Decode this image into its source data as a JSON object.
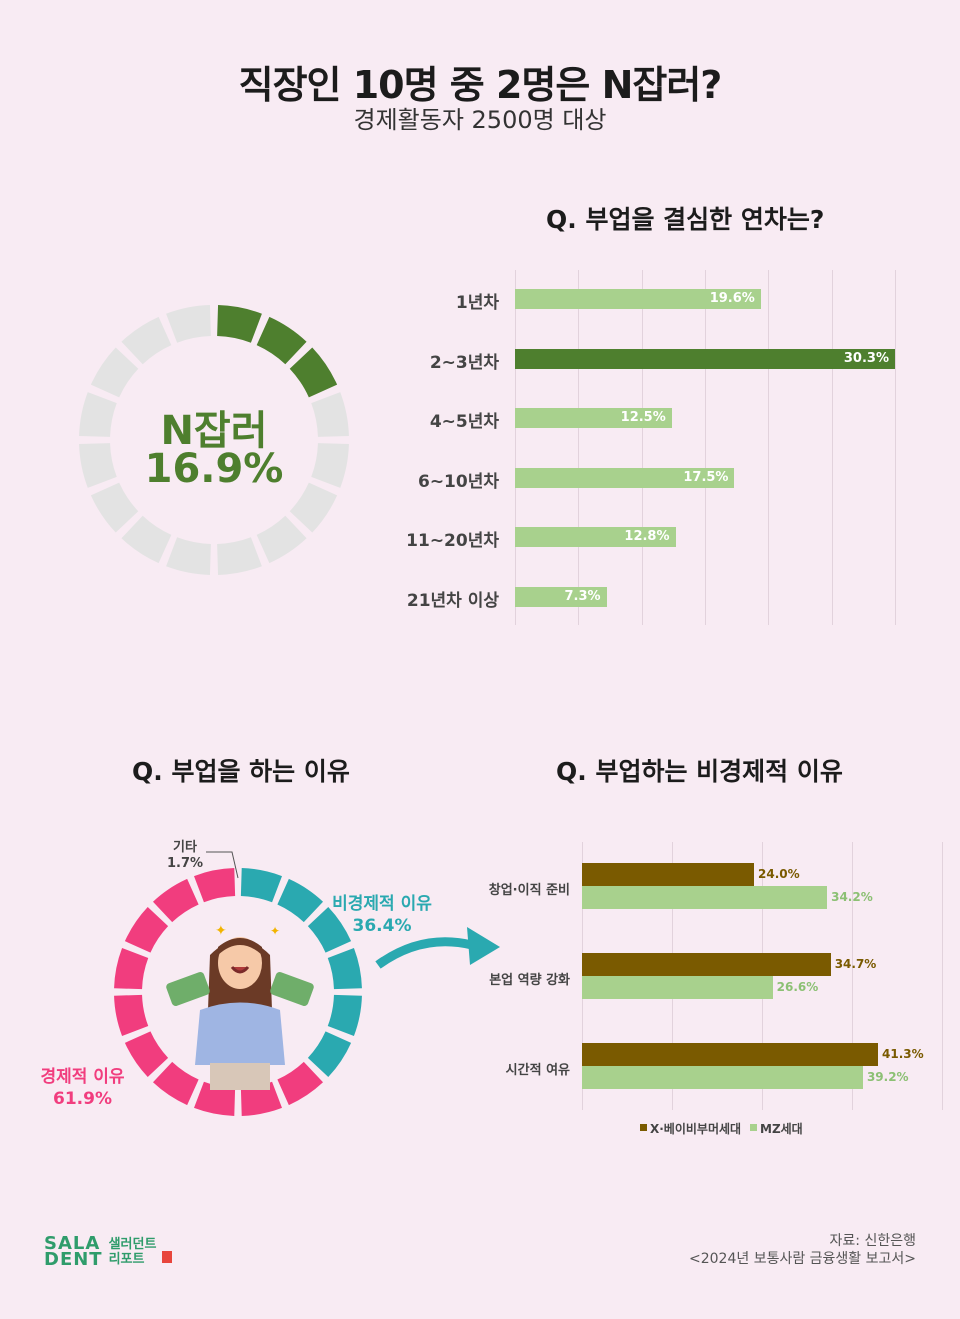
{
  "header": {
    "title": "직장인 10명 중 2명은 N잡러?",
    "subtitle": "경제활동자 2500명 대상"
  },
  "colors": {
    "dark_green": "#4e7f2e",
    "light_green": "#a8d18d",
    "gray": "#e3e3e3",
    "teal": "#2aa9b0",
    "pink": "#f13d7e",
    "brown": "#7a5a00"
  },
  "chart_data": [
    {
      "type": "pie",
      "label_line1": "N잡러",
      "label_line2": "16.9%",
      "values": [
        16.9,
        83.1
      ]
    },
    {
      "type": "bar",
      "title": "Q. 부업을 결심한 연차는?",
      "categories": [
        "1년차",
        "2~3년차",
        "4~5년차",
        "6~10년차",
        "11~20년차",
        "21년차 이상"
      ],
      "values": [
        19.6,
        30.3,
        12.5,
        17.5,
        12.8,
        7.3
      ],
      "labels": [
        "19.6%",
        "30.3%",
        "12.5%",
        "17.5%",
        "12.8%",
        "7.3%"
      ],
      "highlight_index": 1,
      "xlim": [
        0,
        30.3
      ]
    },
    {
      "type": "pie",
      "title": "Q. 부업을 하는 이유",
      "slices": [
        {
          "label": "기타",
          "value_label": "1.7%",
          "value": 1.7,
          "color": "#cccccc"
        },
        {
          "label": "비경제적 이유",
          "value_label": "36.4%",
          "value": 36.4,
          "color": "#2aa9b0"
        },
        {
          "label": "경제적 이유",
          "value_label": "61.9%",
          "value": 61.9,
          "color": "#f13d7e"
        }
      ]
    },
    {
      "type": "bar",
      "title": "Q. 부업하는 비경제적 이유",
      "categories": [
        "창업·이직 준비",
        "본업 역량 강화",
        "시간적 여유"
      ],
      "series": [
        {
          "name": "X·베이비부머세대",
          "values": [
            24.0,
            34.7,
            41.3
          ],
          "labels": [
            "24.0%",
            "34.7%",
            "41.3%"
          ]
        },
        {
          "name": "MZ세대",
          "values": [
            34.2,
            26.6,
            39.2
          ],
          "labels": [
            "34.2%",
            "26.6%",
            "39.2%"
          ]
        }
      ],
      "xlim": [
        0,
        41.3
      ]
    }
  ],
  "footer": {
    "source_line1": "자료: 신한은행",
    "source_line2": "<2024년 보통사람 금융생활 보고서>",
    "logo_left_top": "SALA",
    "logo_left_bottom": "DENT",
    "logo_right_top": "샐러던트",
    "logo_right_bottom": "리포트"
  }
}
